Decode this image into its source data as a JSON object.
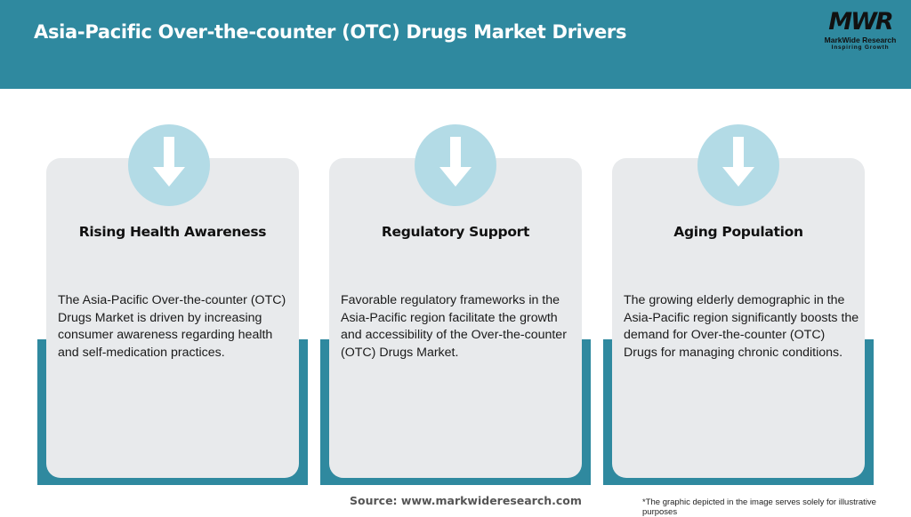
{
  "header": {
    "title": "Asia-Pacific Over-the-counter (OTC) Drugs Market Drivers",
    "background_color": "#2f899f"
  },
  "logo": {
    "mark": "MWR",
    "name": "MarkWide Research",
    "tagline": "Inspiring Growth"
  },
  "cards": [
    {
      "icon": "arrow-down-icon",
      "title": "Rising Health Awareness",
      "text": "The Asia-Pacific Over-the-counter (OTC) Drugs Market is driven by increasing consumer awareness regarding health and self-medication practices."
    },
    {
      "icon": "arrow-down-icon",
      "title": "Regulatory Support",
      "text": "Favorable regulatory frameworks in the Asia-Pacific region facilitate the growth and accessibility of the Over-the-counter (OTC) Drugs Market."
    },
    {
      "icon": "arrow-down-icon",
      "title": "Aging Population",
      "text": "The growing elderly demographic in the Asia-Pacific region significantly boosts the demand for Over-the-counter (OTC) Drugs for managing chronic conditions."
    }
  ],
  "footer": {
    "source": "Source: www.markwideresearch.com",
    "disclaimer": "*The graphic depicted in the image serves solely for illustrative purposes"
  },
  "colors": {
    "accent": "#2f899f",
    "icon_circle": "#b3dbe6",
    "card": "#e8eaec"
  }
}
